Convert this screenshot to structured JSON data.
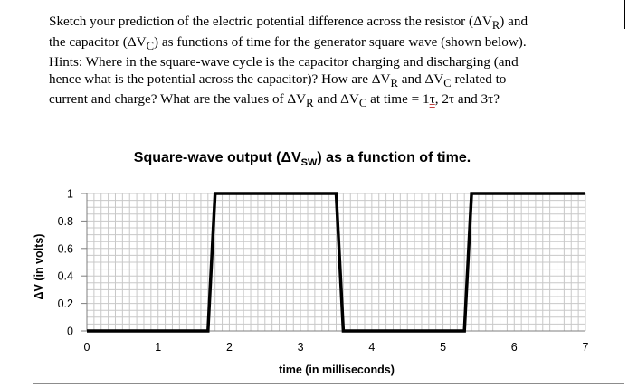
{
  "question": {
    "lines": [
      "Sketch your prediction of the electric potential difference across the resistor (ΔV",
      "the capacitor (ΔV",
      "Hints: Where in the square-wave cycle is the capacitor charging and discharging (and",
      "hence what is the potential across the capacitor)? How are ΔV",
      "current and charge? What are the values of ΔV"
    ],
    "line1_sub": "R",
    "line1_end": ") and",
    "line2_sub": "C",
    "line2_end": ") as functions of time for the generator square wave (shown below).",
    "line4_sub_r": "R",
    "line4_mid": " and ΔV",
    "line4_sub_c": "C",
    "line4_end": " related to",
    "line5_sub_r": "R",
    "line5_mid": " and ΔV",
    "line5_sub_c": "C",
    "line5_end_a": " at time = 1",
    "line5_tau1": "τ",
    "line5_end_b": ", 2τ and 3τ?"
  },
  "chart_data": {
    "type": "line",
    "title_prefix": "Square-wave output (ΔV",
    "title_sub": "SW",
    "title_suffix": ") as a function of time.",
    "xlabel": "time (in milliseconds)",
    "ylabel": "ΔV (in volts)",
    "xlim": [
      0,
      7
    ],
    "ylim": [
      0,
      1
    ],
    "x_ticks": [
      "0",
      "1",
      "2",
      "3",
      "4",
      "5",
      "6",
      "7"
    ],
    "y_ticks": [
      "0",
      "0.2",
      "0.4",
      "0.6",
      "0.8",
      "1"
    ],
    "grid": true,
    "line_color": "#000000",
    "grid_color": "#c8c8c8",
    "series": [
      {
        "x": [
          0,
          1.7,
          1.8,
          3.5,
          3.6,
          5.3,
          5.4,
          7
        ],
        "y": [
          0,
          0,
          1,
          1,
          0,
          0,
          1,
          1
        ]
      }
    ]
  }
}
